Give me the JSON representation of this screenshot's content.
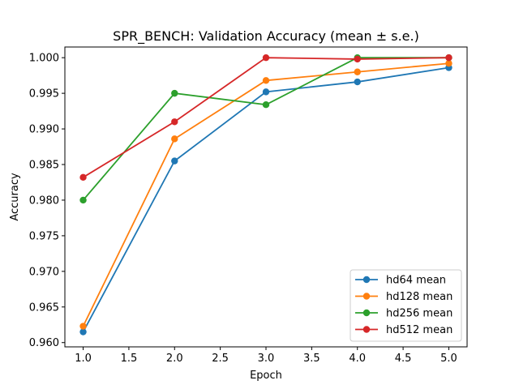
{
  "chart_data": {
    "type": "line",
    "title": "SPR_BENCH: Validation Accuracy (mean ± s.e.)",
    "xlabel": "Epoch",
    "ylabel": "Accuracy",
    "x": [
      1,
      2,
      3,
      4,
      5
    ],
    "xlim": [
      0.8,
      5.2
    ],
    "ylim": [
      0.9594,
      1.0015
    ],
    "xticks": [
      1.0,
      1.5,
      2.0,
      2.5,
      3.0,
      3.5,
      4.0,
      4.5,
      5.0
    ],
    "xtick_labels": [
      "1.0",
      "1.5",
      "2.0",
      "2.5",
      "3.0",
      "3.5",
      "4.0",
      "4.5",
      "5.0"
    ],
    "yticks": [
      0.96,
      0.965,
      0.97,
      0.975,
      0.98,
      0.985,
      0.99,
      0.995,
      1.0
    ],
    "ytick_labels": [
      "0.960",
      "0.965",
      "0.970",
      "0.975",
      "0.980",
      "0.985",
      "0.990",
      "0.995",
      "1.000"
    ],
    "grid": false,
    "legend_position": "bottom-right",
    "series": [
      {
        "name": "hd64 mean",
        "color": "#1f77b4",
        "values": [
          0.9615,
          0.9855,
          0.9952,
          0.9966,
          0.9986
        ]
      },
      {
        "name": "hd128 mean",
        "color": "#ff7f0e",
        "values": [
          0.9623,
          0.9886,
          0.9968,
          0.998,
          0.9992
        ]
      },
      {
        "name": "hd256 mean",
        "color": "#2ca02c",
        "values": [
          0.98,
          0.995,
          0.9934,
          1.0,
          1.0
        ]
      },
      {
        "name": "hd512 mean",
        "color": "#d62728",
        "values": [
          0.9832,
          0.991,
          1.0,
          0.9998,
          1.0
        ]
      }
    ]
  }
}
